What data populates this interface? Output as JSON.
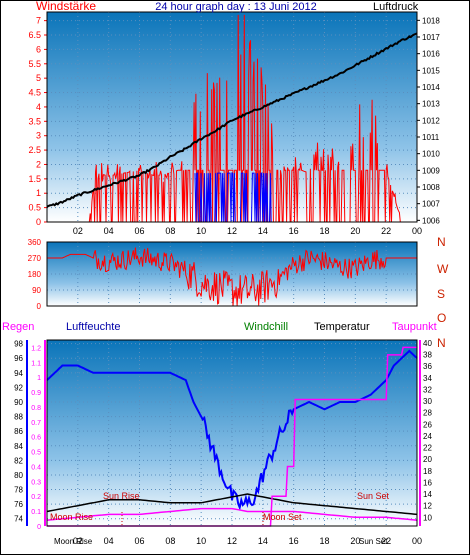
{
  "page": {
    "title": "24 hour graph day : 13 Juni 2012"
  },
  "colors": {
    "wind": "#ff0000",
    "pressure": "#000000",
    "gust": "#0000ff",
    "humidity": "#0000ff",
    "rain": "#ff00ff",
    "windchill": "#008000",
    "temperature": "#000000",
    "dewpoint": "#ff00ff",
    "panel_bg_top": "#0a74b9",
    "panel_bg_bottom": "#ffffff"
  },
  "chart_data": [
    {
      "type": "line",
      "name": "wind-pressure",
      "title": "24 hour graph day : 13 Juni 2012",
      "left_label": "Windstärke",
      "right_label": "Luftdruck",
      "x_ticks": [
        "02",
        "04",
        "06",
        "08",
        "10",
        "12",
        "14",
        "16",
        "18",
        "20",
        "22",
        "00"
      ],
      "y_left_ticks": [
        "0",
        "0.5",
        "1",
        "1.5",
        "2",
        "2.5",
        "3",
        "3.5",
        "4",
        "4.5",
        "5",
        "5.5",
        "6",
        "6.5",
        "7"
      ],
      "y_right_ticks": [
        "1006",
        "1007",
        "1008",
        "1009",
        "1010",
        "1011",
        "1012",
        "1013",
        "1014",
        "1015",
        "1016",
        "1017",
        "1018"
      ],
      "ylim_left": [
        0,
        7.3
      ],
      "ylim_right": [
        1005.9,
        1018.5
      ],
      "series": [
        {
          "name": "Luftdruck",
          "x": [
            0,
            1,
            2,
            3,
            4,
            5,
            6,
            7,
            8,
            9,
            10,
            11,
            12,
            13,
            14,
            15,
            16,
            17,
            18,
            19,
            20,
            21,
            22,
            23,
            24
          ],
          "values": [
            1006.8,
            1007.1,
            1007.5,
            1007.8,
            1008.1,
            1008.4,
            1008.7,
            1009.2,
            1009.8,
            1010.3,
            1010.9,
            1011.4,
            1012.0,
            1012.4,
            1012.8,
            1013.2,
            1013.6,
            1014.0,
            1014.4,
            1014.8,
            1015.3,
            1015.8,
            1016.3,
            1016.8,
            1017.2
          ]
        },
        {
          "name": "Windstärke",
          "x": [
            0,
            2.8,
            3.2,
            4,
            5,
            6,
            7,
            8,
            9,
            9.4,
            10,
            11,
            11.5,
            12,
            13,
            13.5,
            14,
            14.5,
            15,
            16,
            17,
            18,
            19,
            20,
            21,
            22,
            23,
            24
          ],
          "values": [
            0,
            0.3,
            1.7,
            1.6,
            1.7,
            1.8,
            1.6,
            1.7,
            1.9,
            3.5,
            4.0,
            5.2,
            5.5,
            7.2,
            5.5,
            5.0,
            4.5,
            3.0,
            1.8,
            1.9,
            1.7,
            2.5,
            1.8,
            3.6,
            3.7,
            1.8,
            0,
            0
          ]
        },
        {
          "name": "Gust",
          "x": [
            9.6,
            10,
            11,
            12,
            13,
            14,
            14.6
          ],
          "values": [
            1.7,
            1.7,
            1.7,
            1.7,
            1.7,
            1.7,
            1.7
          ]
        }
      ]
    },
    {
      "type": "line",
      "name": "wind-direction",
      "right_labels": [
        "N",
        "W",
        "S",
        "O",
        "N"
      ],
      "y_ticks": [
        "360",
        "270",
        "180",
        "90",
        "0"
      ],
      "ylim": [
        0,
        360
      ],
      "series": [
        {
          "name": "direction",
          "x": [
            0,
            1,
            1.5,
            2.5,
            3,
            4,
            5,
            6,
            7,
            8,
            9,
            10,
            11,
            12,
            13,
            14,
            15,
            16,
            17,
            18,
            19,
            20,
            21,
            22,
            23,
            24
          ],
          "values": [
            270,
            270,
            290,
            290,
            270,
            250,
            260,
            280,
            260,
            240,
            200,
            130,
            110,
            90,
            80,
            100,
            150,
            230,
            270,
            250,
            220,
            210,
            260,
            270,
            270,
            270
          ]
        }
      ]
    },
    {
      "type": "line",
      "name": "humidity-temperature",
      "legend": [
        "Regen",
        "Luftfeuchte",
        "Windchill",
        "Temperatur",
        "Taupunkt"
      ],
      "x_ticks": [
        "02",
        "04",
        "06",
        "08",
        "10",
        "12",
        "14",
        "16",
        "18",
        "20",
        "22",
        "00"
      ],
      "y_far_left_ticks": [
        "0",
        "0.1",
        "0.2",
        "0.3",
        "0.4",
        "0.5",
        "0.6",
        "0.7",
        "0.8",
        "0.9",
        "1",
        "1.1",
        "1.2"
      ],
      "y_left_ticks": [
        "74",
        "76",
        "78",
        "80",
        "82",
        "84",
        "86",
        "88",
        "90",
        "92",
        "94",
        "96",
        "98"
      ],
      "y_right_ticks": [
        "10",
        "12",
        "14",
        "16",
        "18",
        "20",
        "22",
        "24",
        "26",
        "28",
        "30",
        "32",
        "34",
        "36",
        "38",
        "40"
      ],
      "ylim_humidity": [
        73,
        98.5
      ],
      "ylim_temp": [
        8.5,
        40.5
      ],
      "annotations": [
        "Sun Rise",
        "Sun Set",
        "Moon Rise",
        "Moon Set"
      ],
      "x_sub_labels": [
        "Moon Rise",
        "Sun Set"
      ],
      "series": [
        {
          "name": "Luftfeuchte",
          "x": [
            0,
            0.5,
            1,
            2,
            3,
            4,
            5,
            6,
            7,
            8,
            9,
            9.5,
            10,
            11,
            12,
            12.5,
            13,
            13.5,
            14,
            15,
            16,
            17,
            18,
            19,
            20,
            21,
            22,
            22.5,
            23,
            23.5,
            24
          ],
          "values": [
            93,
            94,
            95,
            95,
            94,
            94,
            94,
            94,
            94,
            94,
            93,
            90,
            88,
            82,
            77,
            76,
            76,
            77,
            80,
            85,
            89,
            90,
            89,
            90,
            90,
            91,
            93,
            95,
            96,
            97,
            96
          ]
        },
        {
          "name": "Temperatur",
          "x": [
            0,
            2,
            4,
            6,
            8,
            10,
            12,
            13,
            14,
            16,
            18,
            20,
            22,
            24
          ],
          "values": [
            11,
            12,
            13,
            13,
            12.5,
            12.5,
            13.5,
            14,
            13.5,
            12.5,
            12,
            11.5,
            11,
            10.5
          ]
        },
        {
          "name": "Taupunkt",
          "x": [
            0,
            2,
            4,
            6,
            8,
            10,
            12,
            13,
            14,
            16,
            18,
            20,
            22,
            24
          ],
          "values": [
            9.5,
            10,
            10.5,
            10.5,
            11,
            11.5,
            11.5,
            11,
            11,
            11,
            10.5,
            10,
            10,
            9.5
          ]
        },
        {
          "name": "Regen",
          "x": [
            0,
            14.5,
            14.6,
            15.5,
            15.6,
            16,
            16.1,
            22,
            22.1,
            23,
            23.1,
            24
          ],
          "values": [
            0,
            0,
            0.2,
            0.2,
            0.4,
            0.4,
            0.85,
            0.85,
            1.15,
            1.15,
            1.2,
            1.2
          ]
        }
      ]
    }
  ]
}
